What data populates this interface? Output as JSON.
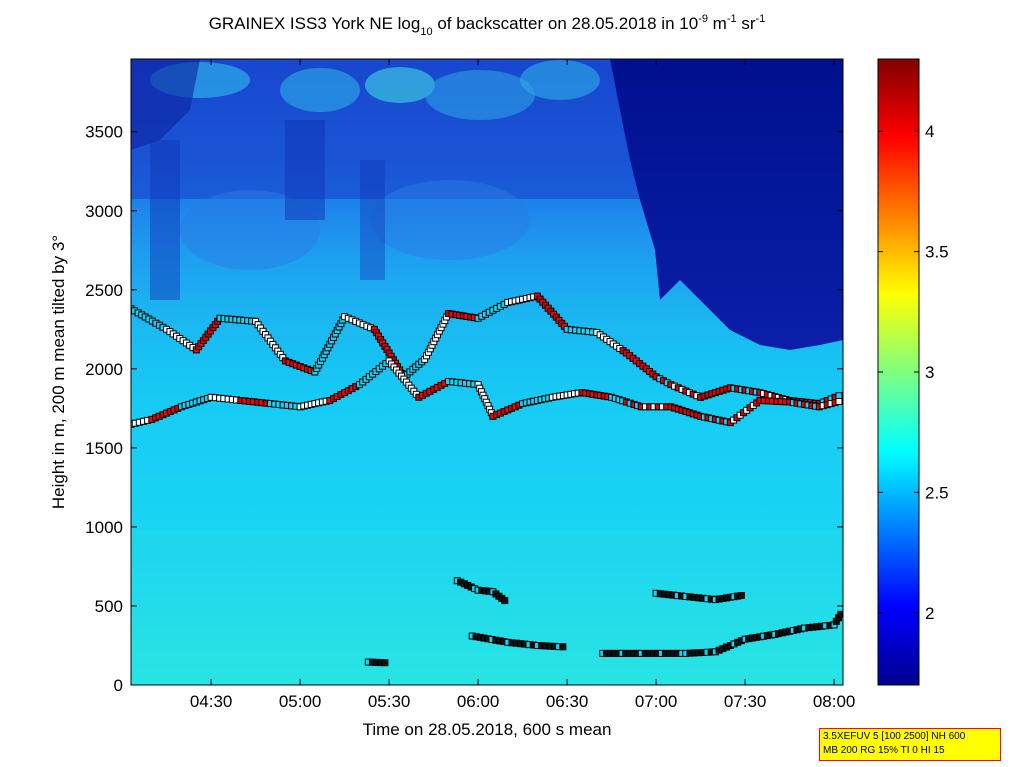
{
  "chart_data": {
    "type": "heatmap",
    "title_parts": {
      "prefix": "GRAINEX ISS3 York NE log",
      "sub": "10",
      "middle": " of backscatter on 28.05.2018 in 10",
      "sup1": "-9",
      "unit_m": " m",
      "sup2": "-1",
      "unit_sr": " sr",
      "sup3": "-1"
    },
    "xlabel": "Time on 28.05.2018, 600 s mean",
    "ylabel": "Height in m, 200 m mean tilted by 3°",
    "x_start": "04:03",
    "x_end": "08:03",
    "xticks": [
      "04:30",
      "05:00",
      "05:30",
      "06:00",
      "06:30",
      "07:00",
      "07:30",
      "08:00"
    ],
    "ylim": [
      0,
      3960
    ],
    "yticks": [
      0,
      500,
      1000,
      1500,
      2000,
      2500,
      3000,
      3500
    ],
    "colorbar": {
      "range": [
        1.7,
        4.3
      ],
      "ticks": [
        "2",
        "2.5",
        "3",
        "3.5",
        "4"
      ],
      "tick_values": [
        2,
        2.5,
        3,
        3.5,
        4
      ],
      "colormap": "jet"
    },
    "colors": {
      "background_low": "#1fe0ee",
      "boundary_layer": "#1ad0f4",
      "free_troposphere": "#1c55e0",
      "clear_air": "#00129a",
      "marker_edge": "#000000"
    },
    "layers": [
      {
        "name": "upper_layer",
        "points": [
          [
            "04:03",
            2380
          ],
          [
            "04:15",
            2250
          ],
          [
            "04:25",
            2120
          ],
          [
            "04:33",
            2320
          ],
          [
            "04:45",
            2300
          ],
          [
            "04:55",
            2050
          ],
          [
            "05:05",
            1980
          ],
          [
            "05:15",
            2330
          ],
          [
            "05:25",
            2250
          ],
          [
            "05:35",
            1950
          ],
          [
            "05:42",
            2060
          ],
          [
            "05:50",
            2350
          ],
          [
            "06:00",
            2320
          ],
          [
            "06:10",
            2420
          ],
          [
            "06:20",
            2460
          ],
          [
            "06:30",
            2250
          ],
          [
            "06:40",
            2230
          ],
          [
            "06:50",
            2100
          ],
          [
            "07:00",
            1950
          ],
          [
            "07:05",
            1900
          ],
          [
            "07:15",
            1820
          ],
          [
            "07:25",
            1880
          ],
          [
            "07:35",
            1850
          ],
          [
            "07:45",
            1800
          ],
          [
            "07:55",
            1780
          ],
          [
            "08:03",
            1840
          ]
        ]
      },
      {
        "name": "middle_layer",
        "points": [
          [
            "04:03",
            1650
          ],
          [
            "04:10",
            1680
          ],
          [
            "04:20",
            1760
          ],
          [
            "04:30",
            1820
          ],
          [
            "04:40",
            1800
          ],
          [
            "04:50",
            1780
          ],
          [
            "05:00",
            1760
          ],
          [
            "05:10",
            1800
          ],
          [
            "05:20",
            1900
          ],
          [
            "05:30",
            2050
          ],
          [
            "05:40",
            1820
          ],
          [
            "05:50",
            1920
          ],
          [
            "06:00",
            1900
          ],
          [
            "06:05",
            1700
          ],
          [
            "06:15",
            1780
          ],
          [
            "06:25",
            1820
          ],
          [
            "06:35",
            1850
          ],
          [
            "06:45",
            1820
          ],
          [
            "06:55",
            1760
          ],
          [
            "07:05",
            1760
          ],
          [
            "07:15",
            1700
          ],
          [
            "07:25",
            1660
          ],
          [
            "07:35",
            1800
          ],
          [
            "07:45",
            1790
          ],
          [
            "07:55",
            1760
          ],
          [
            "08:03",
            1800
          ]
        ]
      },
      {
        "name": "residual_layer",
        "points": [
          [
            "05:53",
            660
          ],
          [
            "06:00",
            600
          ],
          [
            "06:05",
            590
          ],
          [
            "06:10",
            520
          ]
        ]
      },
      {
        "name": "nocturnal_layer",
        "points": [
          [
            "05:58",
            310
          ],
          [
            "06:10",
            270
          ],
          [
            "06:20",
            250
          ],
          [
            "06:30",
            240
          ]
        ]
      },
      {
        "name": "evening_layer",
        "points": [
          [
            "07:00",
            580
          ],
          [
            "07:10",
            560
          ],
          [
            "07:20",
            540
          ],
          [
            "07:30",
            570
          ]
        ]
      },
      {
        "name": "surface_layer",
        "points": [
          [
            "06:42",
            200
          ],
          [
            "06:55",
            200
          ],
          [
            "07:10",
            200
          ],
          [
            "07:20",
            210
          ],
          [
            "07:30",
            290
          ],
          [
            "07:40",
            320
          ],
          [
            "07:50",
            360
          ],
          [
            "08:00",
            380
          ],
          [
            "08:03",
            470
          ]
        ]
      },
      {
        "name": "lowest_layer",
        "points": [
          [
            "05:23",
            145
          ],
          [
            "05:30",
            140
          ]
        ]
      }
    ]
  },
  "settings_note": {
    "line1": "3.5XEFUV 5 [100 2500] NH 600",
    "line2": "MB 200 RG 15% TI 0 HI 15"
  }
}
